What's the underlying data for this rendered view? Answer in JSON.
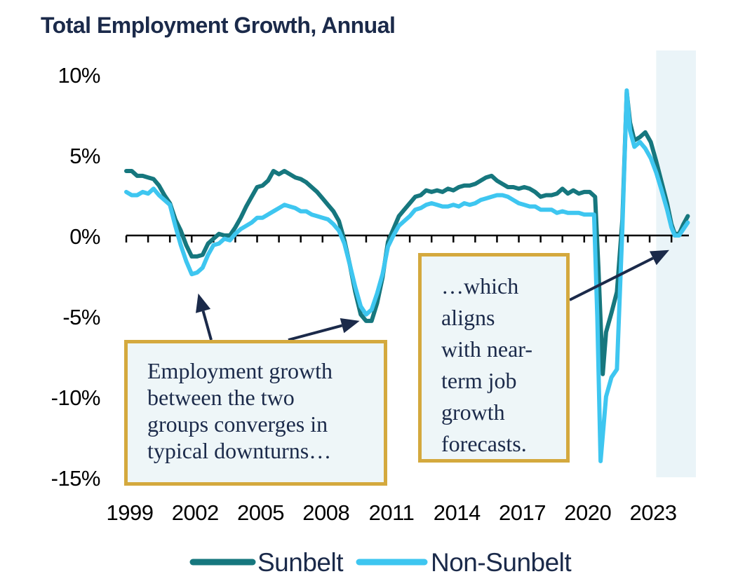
{
  "chart_data": {
    "type": "line",
    "title": "Total Employment Growth, Annual",
    "xlabel": "",
    "ylabel": "",
    "ylim": [
      -15,
      10
    ],
    "xlim": [
      1999,
      2024.8
    ],
    "y_ticks": [
      "10%",
      "5%",
      "0%",
      "-5%",
      "-10%",
      "-15%"
    ],
    "y_tick_values": [
      10,
      5,
      0,
      -5,
      -10,
      -15
    ],
    "x_ticks": [
      "1999",
      "2002",
      "2005",
      "2008",
      "2011",
      "2014",
      "2017",
      "2020",
      "2023"
    ],
    "x_tick_values": [
      1999,
      2002,
      2005,
      2008,
      2011,
      2014,
      2017,
      2020,
      2023
    ],
    "forecast_shade": {
      "from": 2023.3,
      "to": 2024.8,
      "color": "#eaf4f8"
    },
    "series": [
      {
        "name": "Sunbelt",
        "color": "#16777e",
        "points": [
          [
            1999.0,
            4.0
          ],
          [
            1999.25,
            4.0
          ],
          [
            1999.5,
            3.7
          ],
          [
            1999.75,
            3.7
          ],
          [
            2000.0,
            3.6
          ],
          [
            2000.25,
            3.5
          ],
          [
            2000.5,
            3.1
          ],
          [
            2000.75,
            2.5
          ],
          [
            2001.0,
            2.0
          ],
          [
            2001.25,
            1.0
          ],
          [
            2001.5,
            0.3
          ],
          [
            2001.75,
            -0.6
          ],
          [
            2002.0,
            -1.3
          ],
          [
            2002.25,
            -1.3
          ],
          [
            2002.5,
            -1.2
          ],
          [
            2002.75,
            -0.5
          ],
          [
            2003.0,
            -0.2
          ],
          [
            2003.25,
            0.1
          ],
          [
            2003.5,
            0.0
          ],
          [
            2003.75,
            0.0
          ],
          [
            2004.0,
            0.5
          ],
          [
            2004.25,
            1.1
          ],
          [
            2004.5,
            1.8
          ],
          [
            2004.75,
            2.4
          ],
          [
            2005.0,
            3.0
          ],
          [
            2005.25,
            3.1
          ],
          [
            2005.5,
            3.4
          ],
          [
            2005.75,
            4.0
          ],
          [
            2006.0,
            3.8
          ],
          [
            2006.25,
            4.0
          ],
          [
            2006.5,
            3.8
          ],
          [
            2006.75,
            3.6
          ],
          [
            2007.0,
            3.5
          ],
          [
            2007.25,
            3.3
          ],
          [
            2007.5,
            3.0
          ],
          [
            2007.75,
            2.7
          ],
          [
            2008.0,
            2.3
          ],
          [
            2008.25,
            1.9
          ],
          [
            2008.5,
            1.5
          ],
          [
            2008.75,
            0.9
          ],
          [
            2009.0,
            -0.3
          ],
          [
            2009.25,
            -1.8
          ],
          [
            2009.5,
            -3.5
          ],
          [
            2009.75,
            -4.9
          ],
          [
            2010.0,
            -5.3
          ],
          [
            2010.25,
            -5.3
          ],
          [
            2010.5,
            -4.2
          ],
          [
            2010.75,
            -2.6
          ],
          [
            2011.0,
            -0.4
          ],
          [
            2011.25,
            0.4
          ],
          [
            2011.5,
            1.2
          ],
          [
            2011.75,
            1.6
          ],
          [
            2012.0,
            2.0
          ],
          [
            2012.25,
            2.4
          ],
          [
            2012.5,
            2.5
          ],
          [
            2012.75,
            2.8
          ],
          [
            2013.0,
            2.7
          ],
          [
            2013.25,
            2.8
          ],
          [
            2013.5,
            2.7
          ],
          [
            2013.75,
            2.9
          ],
          [
            2014.0,
            2.8
          ],
          [
            2014.25,
            3.0
          ],
          [
            2014.5,
            3.1
          ],
          [
            2014.75,
            3.1
          ],
          [
            2015.0,
            3.2
          ],
          [
            2015.25,
            3.4
          ],
          [
            2015.5,
            3.6
          ],
          [
            2015.75,
            3.7
          ],
          [
            2016.0,
            3.4
          ],
          [
            2016.25,
            3.2
          ],
          [
            2016.5,
            3.0
          ],
          [
            2016.75,
            3.0
          ],
          [
            2017.0,
            2.9
          ],
          [
            2017.25,
            3.0
          ],
          [
            2017.5,
            2.9
          ],
          [
            2017.75,
            2.7
          ],
          [
            2018.0,
            2.4
          ],
          [
            2018.25,
            2.5
          ],
          [
            2018.5,
            2.5
          ],
          [
            2018.75,
            2.6
          ],
          [
            2019.0,
            2.9
          ],
          [
            2019.25,
            2.6
          ],
          [
            2019.5,
            2.8
          ],
          [
            2019.75,
            2.6
          ],
          [
            2020.0,
            2.7
          ],
          [
            2020.25,
            2.7
          ],
          [
            2020.5,
            2.4
          ],
          [
            2020.65,
            -2.0
          ],
          [
            2020.85,
            -8.6
          ],
          [
            2021.0,
            -6.0
          ],
          [
            2021.25,
            -4.8
          ],
          [
            2021.5,
            -3.5
          ],
          [
            2021.75,
            1.0
          ],
          [
            2021.95,
            8.9
          ],
          [
            2022.1,
            7.0
          ],
          [
            2022.3,
            5.9
          ],
          [
            2022.55,
            6.1
          ],
          [
            2022.8,
            6.4
          ],
          [
            2023.05,
            5.8
          ],
          [
            2023.3,
            4.6
          ],
          [
            2023.55,
            3.3
          ],
          [
            2023.8,
            2.0
          ],
          [
            2024.0,
            0.7
          ],
          [
            2024.15,
            0.1
          ],
          [
            2024.35,
            0.1
          ],
          [
            2024.55,
            0.7
          ],
          [
            2024.75,
            1.2
          ]
        ]
      },
      {
        "name": "Non-Sunbelt",
        "color": "#3ec6f0",
        "points": [
          [
            1999.0,
            2.7
          ],
          [
            1999.25,
            2.5
          ],
          [
            1999.5,
            2.5
          ],
          [
            1999.75,
            2.7
          ],
          [
            2000.0,
            2.6
          ],
          [
            2000.25,
            2.9
          ],
          [
            2000.5,
            2.5
          ],
          [
            2000.75,
            2.2
          ],
          [
            2001.0,
            1.9
          ],
          [
            2001.25,
            0.6
          ],
          [
            2001.5,
            -0.6
          ],
          [
            2001.75,
            -1.6
          ],
          [
            2002.0,
            -2.4
          ],
          [
            2002.25,
            -2.3
          ],
          [
            2002.5,
            -2.0
          ],
          [
            2002.75,
            -1.2
          ],
          [
            2003.0,
            -0.6
          ],
          [
            2003.25,
            -0.5
          ],
          [
            2003.5,
            -0.2
          ],
          [
            2003.75,
            -0.3
          ],
          [
            2004.0,
            0.1
          ],
          [
            2004.25,
            0.4
          ],
          [
            2004.5,
            0.6
          ],
          [
            2004.75,
            0.8
          ],
          [
            2005.0,
            1.1
          ],
          [
            2005.25,
            1.1
          ],
          [
            2005.5,
            1.3
          ],
          [
            2005.75,
            1.5
          ],
          [
            2006.0,
            1.7
          ],
          [
            2006.25,
            1.9
          ],
          [
            2006.5,
            1.8
          ],
          [
            2006.75,
            1.7
          ],
          [
            2007.0,
            1.5
          ],
          [
            2007.25,
            1.5
          ],
          [
            2007.5,
            1.3
          ],
          [
            2007.75,
            1.2
          ],
          [
            2008.0,
            1.1
          ],
          [
            2008.25,
            1.0
          ],
          [
            2008.5,
            0.7
          ],
          [
            2008.75,
            0.3
          ],
          [
            2009.0,
            -0.5
          ],
          [
            2009.25,
            -1.8
          ],
          [
            2009.5,
            -3.2
          ],
          [
            2009.75,
            -4.4
          ],
          [
            2010.0,
            -4.9
          ],
          [
            2010.25,
            -4.6
          ],
          [
            2010.5,
            -3.6
          ],
          [
            2010.75,
            -2.4
          ],
          [
            2011.0,
            -0.7
          ],
          [
            2011.25,
            0.0
          ],
          [
            2011.5,
            0.6
          ],
          [
            2011.75,
            0.9
          ],
          [
            2012.0,
            1.2
          ],
          [
            2012.25,
            1.6
          ],
          [
            2012.5,
            1.7
          ],
          [
            2012.75,
            1.9
          ],
          [
            2013.0,
            2.0
          ],
          [
            2013.25,
            1.9
          ],
          [
            2013.5,
            1.8
          ],
          [
            2013.75,
            1.8
          ],
          [
            2014.0,
            1.9
          ],
          [
            2014.25,
            1.8
          ],
          [
            2014.5,
            2.0
          ],
          [
            2014.75,
            1.9
          ],
          [
            2015.0,
            2.0
          ],
          [
            2015.25,
            2.2
          ],
          [
            2015.5,
            2.3
          ],
          [
            2015.75,
            2.4
          ],
          [
            2016.0,
            2.5
          ],
          [
            2016.25,
            2.5
          ],
          [
            2016.5,
            2.4
          ],
          [
            2016.75,
            2.2
          ],
          [
            2017.0,
            2.0
          ],
          [
            2017.25,
            1.9
          ],
          [
            2017.5,
            1.8
          ],
          [
            2017.75,
            1.8
          ],
          [
            2018.0,
            1.6
          ],
          [
            2018.25,
            1.6
          ],
          [
            2018.5,
            1.6
          ],
          [
            2018.75,
            1.4
          ],
          [
            2019.0,
            1.5
          ],
          [
            2019.25,
            1.4
          ],
          [
            2019.5,
            1.4
          ],
          [
            2019.75,
            1.4
          ],
          [
            2020.0,
            1.3
          ],
          [
            2020.25,
            1.3
          ],
          [
            2020.45,
            1.3
          ],
          [
            2020.6,
            -5.0
          ],
          [
            2020.75,
            -14.0
          ],
          [
            2021.0,
            -10.0
          ],
          [
            2021.25,
            -8.8
          ],
          [
            2021.5,
            -8.3
          ],
          [
            2021.75,
            0.5
          ],
          [
            2021.95,
            9.0
          ],
          [
            2022.1,
            6.5
          ],
          [
            2022.3,
            5.5
          ],
          [
            2022.55,
            5.8
          ],
          [
            2022.8,
            5.4
          ],
          [
            2023.05,
            4.8
          ],
          [
            2023.3,
            3.9
          ],
          [
            2023.55,
            2.8
          ],
          [
            2023.8,
            1.6
          ],
          [
            2024.0,
            0.5
          ],
          [
            2024.15,
            0.0
          ],
          [
            2024.35,
            0.0
          ],
          [
            2024.55,
            0.4
          ],
          [
            2024.75,
            0.8
          ]
        ]
      }
    ],
    "annotations": [
      {
        "id": "downturns",
        "lines": [
          "Employment growth",
          "between the two",
          "groups converges in",
          "typical downturns…"
        ],
        "arrows_to": [
          [
            2002.3,
            -3.6
          ],
          [
            2009.7,
            -5.3
          ]
        ]
      },
      {
        "id": "forecasts",
        "lines": [
          "…which",
          "aligns",
          "with near-",
          "term job",
          "growth",
          "forecasts."
        ],
        "arrows_to": [
          [
            2023.9,
            -0.9
          ]
        ]
      }
    ],
    "legend": {
      "placement": "bottom-center",
      "entries": [
        "Sunbelt",
        "Non-Sunbelt"
      ]
    }
  }
}
